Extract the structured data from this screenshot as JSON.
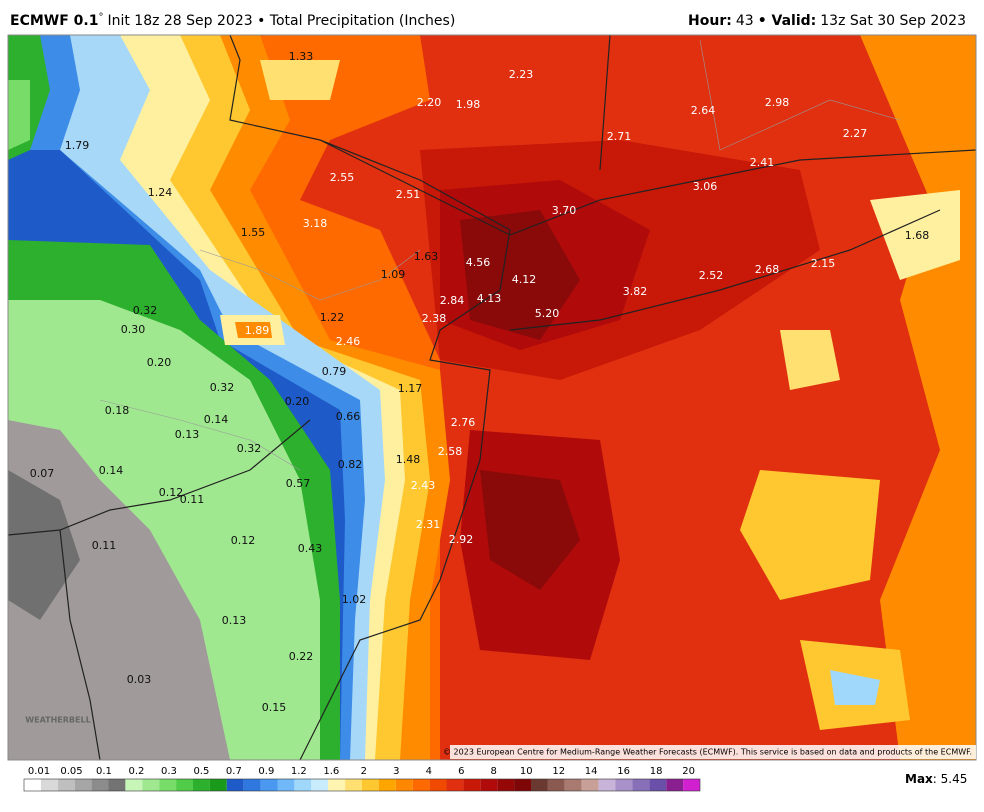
{
  "header": {
    "model": "ECMWF 0.1",
    "degree": "°",
    "init": "Init 18z 28 Sep 2023 • Total Precipitation (Inches)",
    "hour_label": "Hour:",
    "hour": "43",
    "valid_label": "• Valid:",
    "valid": "13z Sat 30 Sep 2023"
  },
  "map": {
    "labels": [
      "1.33",
      "2.23",
      "2.20",
      "1.98",
      "2.64",
      "2.98",
      "2.71",
      "2.27",
      "1.79",
      "2.41",
      "3.06",
      "2.55",
      "2.51",
      "1.24",
      "3.70",
      "3.18",
      "1.55",
      "1.68",
      "1.63",
      "4.56",
      "1.09",
      "4.12",
      "2.52",
      "2.68",
      "2.15",
      "3.82",
      "2.84",
      "4.13",
      "0.32",
      "5.20",
      "1.22",
      "2.38",
      "1.89",
      "0.30",
      "2.46",
      "0.20",
      "0.79",
      "1.17",
      "0.32",
      "0.20",
      "0.18",
      "0.14",
      "0.66",
      "2.76",
      "0.13",
      "0.32",
      "2.58",
      "1.48",
      "0.82",
      "0.07",
      "0.14",
      "0.57",
      "2.43",
      "0.12",
      "0.11",
      "2.31",
      "2.92",
      "0.12",
      "0.11",
      "0.43",
      "1.02",
      "0.13",
      "0.22",
      "0.03",
      "0.15"
    ],
    "copyright": "© 2023 European Centre for Medium-Range Weather Forecasts (ECMWF). This service is based on data and products of the ECMWF.",
    "logo": "WEATHERBELL"
  },
  "colorbar": {
    "labels": [
      "0.01",
      "0.05",
      "0.1",
      "0.2",
      "0.3",
      "0.5",
      "0.7",
      "0.9",
      "1.2",
      "1.6",
      "2",
      "3",
      "4",
      "6",
      "8",
      "10",
      "12",
      "14",
      "16",
      "18",
      "20"
    ],
    "colors": [
      "#ffffff",
      "#d9d9d9",
      "#bfbfbf",
      "#a6a6a6",
      "#8c8c8c",
      "#737373",
      "#c8f5b8",
      "#a0e890",
      "#78dc68",
      "#50cc48",
      "#2db02d",
      "#1a9a1a",
      "#1e5ac8",
      "#2f78e0",
      "#4a98f0",
      "#70b8f8",
      "#a0d8fc",
      "#c8ecfc",
      "#fff4b0",
      "#ffe070",
      "#ffc830",
      "#ffa500",
      "#ff8800",
      "#ff6a00",
      "#f04a00",
      "#e03010",
      "#c81808",
      "#b00a0a",
      "#960808",
      "#7e0606",
      "#6a3a32",
      "#8a5a50",
      "#a87a70",
      "#c8a098",
      "#c8b4d8",
      "#a890c8",
      "#8870b8",
      "#6a50a8",
      "#8a2090",
      "#d020d0"
    ]
  },
  "max": {
    "label": "Max",
    "value": ": 5.45"
  }
}
